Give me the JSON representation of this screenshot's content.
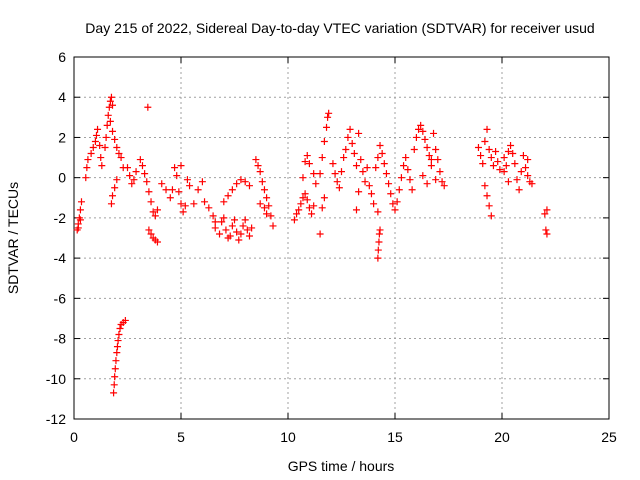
{
  "chart_data": {
    "type": "scatter",
    "title": "Day 215 of 2022, Sidereal Day-to-day VTEC variation (SDTVAR) for receiver usud",
    "xlabel": "GPS time / hours",
    "ylabel": "SDTVAR / TECUs",
    "xlim": [
      0,
      25
    ],
    "ylim": [
      -12,
      6
    ],
    "xticks": [
      "0",
      "5",
      "10",
      "15",
      "20",
      "25"
    ],
    "yticks": [
      "6",
      "4",
      "2",
      "0",
      "-2",
      "-4",
      "-6",
      "-8",
      "-10",
      "-12"
    ],
    "grid": true,
    "marker": "+",
    "color": "#ff0000",
    "series": [
      {
        "name": "SDTVAR",
        "points": [
          [
            0.15,
            -2.6
          ],
          [
            0.2,
            -2.3
          ],
          [
            0.25,
            -2.0
          ],
          [
            0.3,
            -1.6
          ],
          [
            0.35,
            -1.2
          ],
          [
            0.2,
            -2.5
          ],
          [
            0.3,
            -2.1
          ],
          [
            0.55,
            0.0
          ],
          [
            0.6,
            0.5
          ],
          [
            0.65,
            0.9
          ],
          [
            0.8,
            1.2
          ],
          [
            0.9,
            1.5
          ],
          [
            1.0,
            1.8
          ],
          [
            1.05,
            2.1
          ],
          [
            1.1,
            2.4
          ],
          [
            1.2,
            1.6
          ],
          [
            1.25,
            1.0
          ],
          [
            1.3,
            0.6
          ],
          [
            1.45,
            1.5
          ],
          [
            1.5,
            2.0
          ],
          [
            1.55,
            2.6
          ],
          [
            1.6,
            3.1
          ],
          [
            1.65,
            3.5
          ],
          [
            1.7,
            3.8
          ],
          [
            1.75,
            4.0
          ],
          [
            1.8,
            3.6
          ],
          [
            1.7,
            2.8
          ],
          [
            1.8,
            2.3
          ],
          [
            1.9,
            1.9
          ],
          [
            2.0,
            1.5
          ],
          [
            2.1,
            1.2
          ],
          [
            2.2,
            1.0
          ],
          [
            2.3,
            0.5
          ],
          [
            2.0,
            -0.1
          ],
          [
            1.9,
            -0.5
          ],
          [
            1.8,
            -0.9
          ],
          [
            1.75,
            -1.3
          ],
          [
            1.85,
            -10.7
          ],
          [
            1.88,
            -10.3
          ],
          [
            1.9,
            -9.9
          ],
          [
            1.93,
            -9.5
          ],
          [
            1.96,
            -9.1
          ],
          [
            2.0,
            -8.7
          ],
          [
            2.03,
            -8.4
          ],
          [
            2.06,
            -8.1
          ],
          [
            2.1,
            -7.8
          ],
          [
            2.15,
            -7.5
          ],
          [
            2.2,
            -7.3
          ],
          [
            2.3,
            -7.2
          ],
          [
            2.4,
            -7.1
          ],
          [
            2.5,
            0.5
          ],
          [
            2.6,
            0.1
          ],
          [
            2.7,
            -0.3
          ],
          [
            2.8,
            -0.1
          ],
          [
            2.9,
            0.3
          ],
          [
            3.1,
            0.9
          ],
          [
            3.2,
            0.6
          ],
          [
            3.3,
            0.2
          ],
          [
            3.4,
            -0.2
          ],
          [
            3.5,
            -0.7
          ],
          [
            3.6,
            -1.2
          ],
          [
            3.7,
            -1.7
          ],
          [
            3.8,
            -1.9
          ],
          [
            3.9,
            -1.6
          ],
          [
            3.45,
            3.5
          ],
          [
            3.5,
            -2.6
          ],
          [
            3.6,
            -2.8
          ],
          [
            3.7,
            -3.0
          ],
          [
            3.8,
            -3.1
          ],
          [
            3.9,
            -3.2
          ],
          [
            4.1,
            -0.3
          ],
          [
            4.3,
            -0.6
          ],
          [
            4.5,
            -1.0
          ],
          [
            4.6,
            -0.6
          ],
          [
            4.7,
            0.5
          ],
          [
            4.8,
            0.1
          ],
          [
            4.9,
            -0.7
          ],
          [
            5.0,
            -1.3
          ],
          [
            5.1,
            -1.7
          ],
          [
            5.2,
            -1.4
          ],
          [
            5.0,
            0.6
          ],
          [
            5.3,
            -0.1
          ],
          [
            5.4,
            -0.4
          ],
          [
            5.6,
            -1.3
          ],
          [
            5.8,
            -0.6
          ],
          [
            6.0,
            -0.2
          ],
          [
            6.1,
            -1.2
          ],
          [
            6.3,
            -1.5
          ],
          [
            6.5,
            -1.9
          ],
          [
            6.6,
            -2.2
          ],
          [
            6.6,
            -2.5
          ],
          [
            6.8,
            -2.8
          ],
          [
            6.9,
            -2.2
          ],
          [
            7.0,
            -2.0
          ],
          [
            7.1,
            -2.6
          ],
          [
            7.2,
            -3.0
          ],
          [
            7.3,
            -2.9
          ],
          [
            7.4,
            -2.4
          ],
          [
            7.5,
            -2.1
          ],
          [
            7.6,
            -2.7
          ],
          [
            7.7,
            -3.1
          ],
          [
            7.8,
            -2.8
          ],
          [
            7.9,
            -2.4
          ],
          [
            8.0,
            -2.1
          ],
          [
            8.1,
            -2.6
          ],
          [
            8.2,
            -2.9
          ],
          [
            8.3,
            -2.5
          ],
          [
            7.0,
            -1.2
          ],
          [
            7.2,
            -0.9
          ],
          [
            7.4,
            -0.6
          ],
          [
            7.6,
            -0.3
          ],
          [
            7.8,
            -0.1
          ],
          [
            8.0,
            -0.2
          ],
          [
            8.2,
            -0.4
          ],
          [
            8.5,
            0.9
          ],
          [
            8.6,
            0.6
          ],
          [
            8.7,
            0.3
          ],
          [
            8.8,
            -0.2
          ],
          [
            8.9,
            -0.6
          ],
          [
            9.0,
            -1.0
          ],
          [
            9.1,
            -1.4
          ],
          [
            9.2,
            -1.9
          ],
          [
            9.3,
            -2.4
          ],
          [
            8.7,
            -1.3
          ],
          [
            8.9,
            -1.5
          ],
          [
            9.0,
            -1.8
          ],
          [
            10.3,
            -2.1
          ],
          [
            10.4,
            -1.8
          ],
          [
            10.5,
            -1.6
          ],
          [
            10.6,
            -1.3
          ],
          [
            10.7,
            -1.0
          ],
          [
            10.8,
            -0.8
          ],
          [
            10.9,
            -1.1
          ],
          [
            11.0,
            -1.5
          ],
          [
            11.1,
            -1.8
          ],
          [
            11.2,
            -1.4
          ],
          [
            10.7,
            0.0
          ],
          [
            10.8,
            0.8
          ],
          [
            10.9,
            1.1
          ],
          [
            11.0,
            0.7
          ],
          [
            11.2,
            0.2
          ],
          [
            11.3,
            -0.3
          ],
          [
            11.5,
            0.2
          ],
          [
            11.6,
            1.0
          ],
          [
            11.7,
            1.8
          ],
          [
            11.8,
            2.5
          ],
          [
            11.85,
            3.0
          ],
          [
            11.9,
            3.2
          ],
          [
            11.7,
            -1.0
          ],
          [
            11.6,
            -1.5
          ],
          [
            11.5,
            -2.8
          ],
          [
            12.1,
            0.7
          ],
          [
            12.2,
            0.2
          ],
          [
            12.3,
            -0.2
          ],
          [
            12.4,
            -0.5
          ],
          [
            12.5,
            0.3
          ],
          [
            12.6,
            1.0
          ],
          [
            12.7,
            1.4
          ],
          [
            12.8,
            2.0
          ],
          [
            12.9,
            2.4
          ],
          [
            13.0,
            1.7
          ],
          [
            13.1,
            1.2
          ],
          [
            13.2,
            0.6
          ],
          [
            13.3,
            2.2
          ],
          [
            13.4,
            0.9
          ],
          [
            13.5,
            0.3
          ],
          [
            13.6,
            -0.2
          ],
          [
            13.7,
            0.5
          ],
          [
            13.8,
            -0.4
          ],
          [
            13.9,
            -0.8
          ],
          [
            14.0,
            -1.3
          ],
          [
            13.2,
            -1.6
          ],
          [
            13.3,
            -0.7
          ],
          [
            14.1,
            0.5
          ],
          [
            14.2,
            1.0
          ],
          [
            14.3,
            1.6
          ],
          [
            14.4,
            1.2
          ],
          [
            14.5,
            0.7
          ],
          [
            14.6,
            0.2
          ],
          [
            14.7,
            -0.3
          ],
          [
            14.8,
            -0.8
          ],
          [
            14.9,
            -1.3
          ],
          [
            15.0,
            -1.6
          ],
          [
            15.1,
            -1.2
          ],
          [
            15.2,
            -0.6
          ],
          [
            15.3,
            0.0
          ],
          [
            15.4,
            0.6
          ],
          [
            15.5,
            1.0
          ],
          [
            15.6,
            0.4
          ],
          [
            15.7,
            -0.1
          ],
          [
            15.8,
            -0.6
          ],
          [
            14.2,
            -1.7
          ],
          [
            14.2,
            -4.0
          ],
          [
            14.22,
            -3.6
          ],
          [
            14.25,
            -3.2
          ],
          [
            14.27,
            -2.8
          ],
          [
            14.3,
            -2.6
          ],
          [
            15.9,
            1.4
          ],
          [
            16.0,
            2.0
          ],
          [
            16.1,
            2.4
          ],
          [
            16.2,
            2.6
          ],
          [
            16.3,
            2.3
          ],
          [
            16.4,
            1.9
          ],
          [
            16.5,
            1.5
          ],
          [
            16.6,
            1.1
          ],
          [
            16.7,
            0.6
          ],
          [
            16.8,
            2.2
          ],
          [
            16.9,
            1.4
          ],
          [
            17.0,
            0.9
          ],
          [
            17.1,
            0.3
          ],
          [
            17.2,
            -0.2
          ],
          [
            17.3,
            -0.4
          ],
          [
            16.3,
            0.1
          ],
          [
            16.5,
            -0.3
          ],
          [
            16.7,
            0.9
          ],
          [
            16.9,
            -0.1
          ],
          [
            18.9,
            1.5
          ],
          [
            19.0,
            1.1
          ],
          [
            19.1,
            0.7
          ],
          [
            19.2,
            1.8
          ],
          [
            19.3,
            2.4
          ],
          [
            19.4,
            1.4
          ],
          [
            19.5,
            1.0
          ],
          [
            19.6,
            0.6
          ],
          [
            19.7,
            1.3
          ],
          [
            19.8,
            0.8
          ],
          [
            19.9,
            0.4
          ],
          [
            19.2,
            -0.4
          ],
          [
            19.3,
            -0.9
          ],
          [
            19.4,
            -1.4
          ],
          [
            19.5,
            -1.9
          ],
          [
            20.1,
            1.0
          ],
          [
            20.2,
            0.6
          ],
          [
            20.3,
            1.3
          ],
          [
            20.4,
            1.6
          ],
          [
            20.5,
            1.2
          ],
          [
            20.6,
            0.7
          ],
          [
            20.7,
            -0.1
          ],
          [
            20.8,
            -0.6
          ],
          [
            20.9,
            0.3
          ],
          [
            20.1,
            0.3
          ],
          [
            20.3,
            -0.2
          ],
          [
            21.0,
            1.1
          ],
          [
            21.1,
            0.5
          ],
          [
            21.2,
            0.1
          ],
          [
            21.3,
            -0.2
          ],
          [
            21.4,
            -0.3
          ],
          [
            21.2,
            0.9
          ],
          [
            22.0,
            -1.8
          ],
          [
            22.1,
            -1.6
          ],
          [
            22.05,
            -2.6
          ],
          [
            22.1,
            -2.8
          ]
        ]
      }
    ]
  }
}
